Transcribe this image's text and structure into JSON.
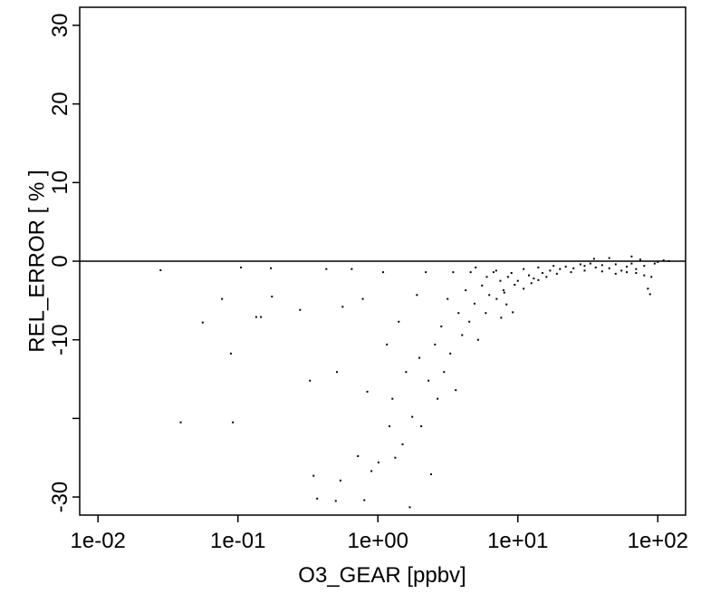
{
  "chart_data": {
    "type": "scatter",
    "xlabel": "O3_GEAR [ppbv]",
    "ylabel": "REL_ERROR [ % ]",
    "xlog": true,
    "color": "#000000",
    "hline": 0,
    "xlim": [
      0.0074,
      158
    ],
    "ylim": [
      -32.3,
      32.3
    ],
    "xticks": [
      {
        "value": 0.01,
        "label": "1e-02"
      },
      {
        "value": 0.1,
        "label": "1e-01"
      },
      {
        "value": 1,
        "label": "1e+00"
      },
      {
        "value": 10,
        "label": "1e+01"
      },
      {
        "value": 100,
        "label": "1e+02"
      }
    ],
    "yticks": [
      -30,
      {
        "value": -20,
        "label": null
      },
      -10,
      0,
      10,
      20,
      30
    ],
    "x": [
      0.028,
      0.039,
      0.056,
      0.077,
      0.089,
      0.092,
      0.105,
      0.135,
      0.146,
      0.175,
      0.172,
      0.278,
      0.327,
      0.347,
      0.368,
      0.428,
      0.51,
      0.54,
      0.5,
      0.56,
      0.65,
      0.72,
      0.78,
      0.8,
      0.84,
      0.9,
      1.01,
      1.09,
      1.16,
      1.21,
      1.27,
      1.33,
      1.41,
      1.5,
      1.59,
      1.69,
      1.76,
      1.9,
      1.98,
      2.04,
      2.2,
      2.3,
      2.4,
      2.56,
      2.67,
      2.84,
      2.97,
      3.15,
      3.29,
      3.45,
      3.6,
      3.77,
      4.0,
      4.24,
      4.5,
      4.6,
      4.9,
      5.2,
      5.55,
      5.9,
      6.25,
      6.7,
      7.05,
      7.5,
      7.9,
      8.5,
      9,
      10,
      11,
      12,
      13,
      14,
      15,
      17,
      18,
      20,
      22,
      25,
      28,
      30,
      33,
      36,
      40,
      45,
      50,
      55,
      60,
      65,
      70,
      75,
      80,
      85,
      90,
      95,
      100,
      110,
      120,
      8,
      9.5,
      11,
      12.5,
      14,
      16,
      19,
      24,
      30,
      40,
      50,
      60,
      70,
      80,
      88,
      6,
      7,
      5,
      35,
      45,
      65,
      8.3,
      9.2,
      7.6
    ],
    "values": [
      -1.15,
      -20.5,
      -7.8,
      -4.8,
      -11.75,
      -20.5,
      -0.8,
      -7.1,
      -7.1,
      -4.5,
      -0.9,
      -6.2,
      -15.2,
      -27.3,
      -30.2,
      -1.0,
      -14.1,
      -27.9,
      -30.5,
      -5.8,
      -1.0,
      -24.8,
      -4.8,
      -30.4,
      -16.6,
      -26.7,
      -25.6,
      -1.4,
      -10.6,
      -21.0,
      -17.5,
      -25.0,
      -7.7,
      -23.3,
      -14.1,
      -31.3,
      -19.8,
      -4.3,
      -12.3,
      -21.0,
      -1.4,
      -15.2,
      -27.1,
      -10.6,
      -17.5,
      -8.3,
      -14.1,
      -4.8,
      -11.75,
      -1.4,
      -16.4,
      -6.6,
      -9.4,
      -3.7,
      -7.7,
      -1.4,
      -5.4,
      -10.0,
      -3.1,
      -6.6,
      -4.3,
      -1.4,
      -4.8,
      -2.5,
      -3.7,
      -2,
      -1.5,
      -2.5,
      -1,
      -1.8,
      -2.2,
      -0.8,
      -1.5,
      -1.2,
      -0.6,
      -1,
      -0.7,
      -0.9,
      -0.4,
      -0.6,
      -0.3,
      -0.8,
      -0.5,
      -0.9,
      -0.4,
      -1.2,
      -0.7,
      -0.3,
      -1.5,
      0.2,
      -0.6,
      -3.5,
      -2.0,
      -0.3,
      -0.1,
      0.1,
      0,
      -4,
      -3,
      -3.5,
      -2.8,
      -2.4,
      -2,
      -1.6,
      -1.4,
      -1.2,
      -1.3,
      -1.6,
      -1.4,
      -1,
      -1.8,
      -4.2,
      -2,
      -1.2,
      -0.8,
      0.3,
      0.4,
      0.6,
      -5.5,
      -6.5,
      -7.2
    ]
  }
}
